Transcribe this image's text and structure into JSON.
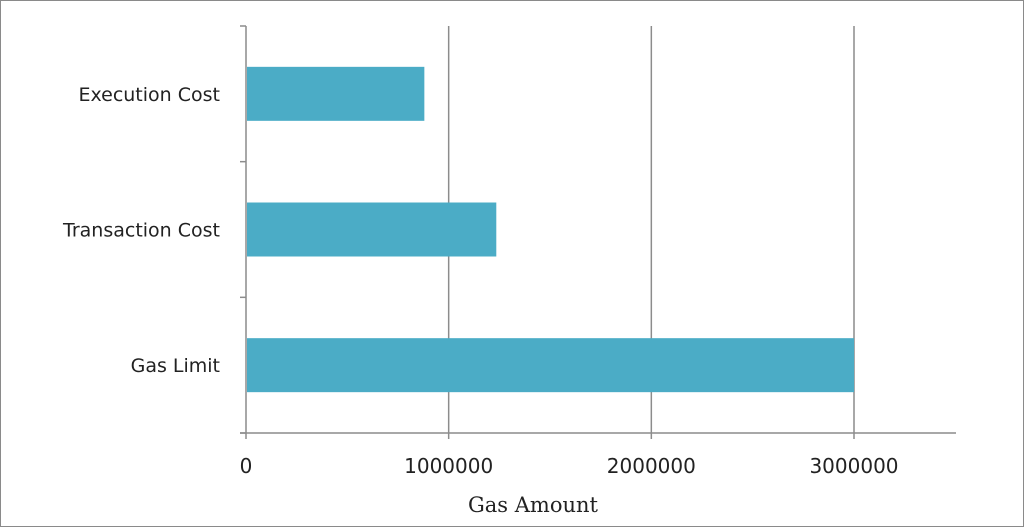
{
  "chart_data": {
    "type": "bar",
    "orientation": "horizontal",
    "title": "",
    "xlabel": "Gas Amount",
    "ylabel": "",
    "categories": [
      "Execution Cost",
      "Transaction Cost",
      "Gas Limit"
    ],
    "values": [
      880000,
      1235000,
      3000000
    ],
    "xlim": [
      0,
      3500000
    ],
    "xticks": [
      "0",
      "1000000",
      "2000000",
      "3000000"
    ],
    "grid": "vertical",
    "legend": "none",
    "bar_color": "#4BACC6"
  }
}
